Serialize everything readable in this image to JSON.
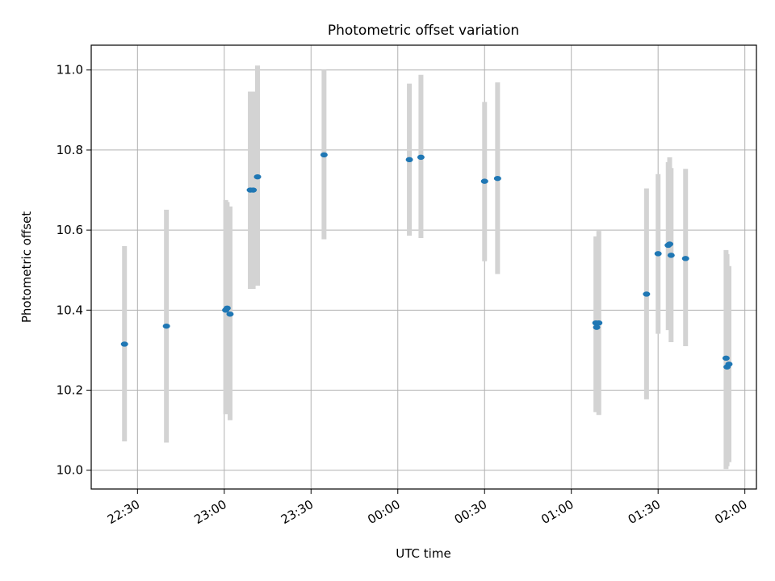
{
  "chart_data": {
    "type": "scatter",
    "title": "Photometric offset variation",
    "xlabel": "UTC time",
    "ylabel": "Photometric offset",
    "x_ticks": [
      "22:30",
      "23:00",
      "23:30",
      "00:00",
      "00:30",
      "01:00",
      "01:30",
      "02:00"
    ],
    "y_ticks": [
      "10.0",
      "10.2",
      "10.4",
      "10.6",
      "10.8",
      "11.0"
    ],
    "xlim": [
      "22:14",
      "02:04"
    ],
    "ylim": [
      9.953,
      11.062
    ],
    "grid": true,
    "marker_color": "#1f77b4",
    "errorbar_color": "#d3d3d3",
    "points": [
      {
        "t": "22:25:30",
        "y": 10.315,
        "lo": 10.072,
        "hi": 10.56
      },
      {
        "t": "22:40:00",
        "y": 10.36,
        "lo": 10.069,
        "hi": 10.651
      },
      {
        "t": "23:00:30",
        "y": 10.4,
        "lo": 10.14,
        "hi": 10.675
      },
      {
        "t": "23:01:00",
        "y": 10.405,
        "lo": 10.15,
        "hi": 10.67
      },
      {
        "t": "23:02:00",
        "y": 10.39,
        "lo": 10.125,
        "hi": 10.659
      },
      {
        "t": "23:09:00",
        "y": 10.7,
        "lo": 10.453,
        "hi": 10.946
      },
      {
        "t": "23:10:00",
        "y": 10.7,
        "lo": 10.453,
        "hi": 10.946
      },
      {
        "t": "23:11:30",
        "y": 10.733,
        "lo": 10.461,
        "hi": 11.011
      },
      {
        "t": "23:34:30",
        "y": 10.788,
        "lo": 10.577,
        "hi": 11.0
      },
      {
        "t": "00:04:00",
        "y": 10.776,
        "lo": 10.586,
        "hi": 10.966
      },
      {
        "t": "00:08:00",
        "y": 10.782,
        "lo": 10.58,
        "hi": 10.988
      },
      {
        "t": "00:30:00",
        "y": 10.722,
        "lo": 10.522,
        "hi": 10.92
      },
      {
        "t": "00:34:30",
        "y": 10.729,
        "lo": 10.49,
        "hi": 10.969
      },
      {
        "t": "01:08:30",
        "y": 10.368,
        "lo": 10.145,
        "hi": 10.584
      },
      {
        "t": "01:08:45",
        "y": 10.357,
        "lo": 10.15,
        "hi": 10.57
      },
      {
        "t": "01:09:30",
        "y": 10.368,
        "lo": 10.138,
        "hi": 10.598
      },
      {
        "t": "01:26:00",
        "y": 10.44,
        "lo": 10.177,
        "hi": 10.704
      },
      {
        "t": "01:30:00",
        "y": 10.541,
        "lo": 10.341,
        "hi": 10.74
      },
      {
        "t": "01:33:30",
        "y": 10.562,
        "lo": 10.35,
        "hi": 10.77
      },
      {
        "t": "01:34:00",
        "y": 10.565,
        "lo": 10.355,
        "hi": 10.782
      },
      {
        "t": "01:34:30",
        "y": 10.537,
        "lo": 10.32,
        "hi": 10.755
      },
      {
        "t": "01:39:30",
        "y": 10.529,
        "lo": 10.31,
        "hi": 10.753
      },
      {
        "t": "01:53:30",
        "y": 10.28,
        "lo": 10.003,
        "hi": 10.55
      },
      {
        "t": "01:53:50",
        "y": 10.258,
        "lo": 10.01,
        "hi": 10.54
      },
      {
        "t": "01:54:30",
        "y": 10.265,
        "lo": 10.02,
        "hi": 10.51
      }
    ]
  }
}
